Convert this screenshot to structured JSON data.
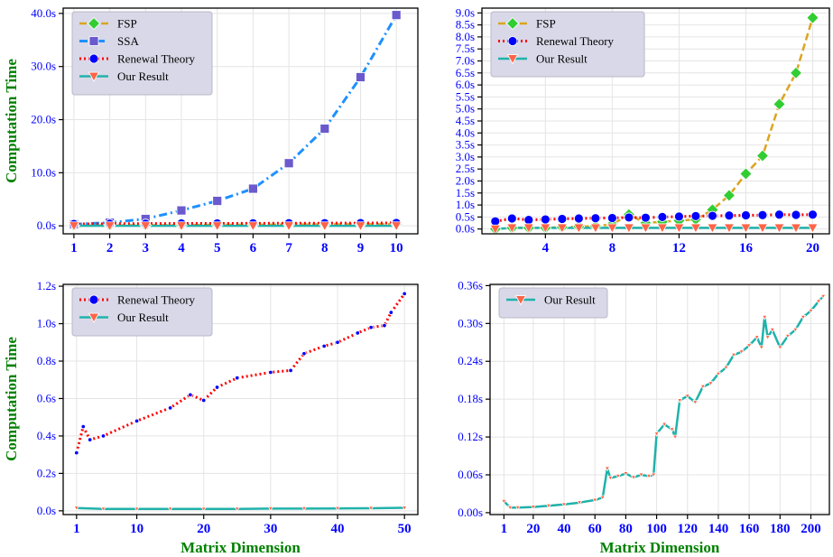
{
  "colors": {
    "FSP": "#DAA520",
    "SSA": "#1E90FF",
    "Renewal Theory": "#FF0000",
    "Our Result": "#20B2AA",
    "FSP_marker": "#32CD32",
    "SSA_marker": "#6A5ACD",
    "Renewal Theory_marker": "#0000FF",
    "Our Result_marker": "#FF6347",
    "tick": "#0000FF",
    "axis_label": "#008000",
    "legend_bg": "#D8D8E8"
  },
  "chart_data": [
    {
      "type": "line",
      "ylabel": "Computation Time",
      "xlabel": "",
      "xlim": [
        0.7,
        10.6
      ],
      "ylim": [
        -1.5,
        41
      ],
      "xticks": [
        1,
        2,
        3,
        4,
        5,
        6,
        7,
        8,
        9,
        10
      ],
      "yticks": [
        0,
        10,
        20,
        30,
        40
      ],
      "ytick_labels": [
        "0.0s",
        "10.0s",
        "20.0s",
        "30.0s",
        "40.0s"
      ],
      "grid": true,
      "legend_position": "top-left",
      "legend": [
        "FSP",
        "SSA",
        "Renewal Theory",
        "Our Result"
      ],
      "series": [
        {
          "name": "FSP",
          "x": [
            1,
            2,
            3,
            4,
            5,
            6,
            7,
            8,
            9,
            10
          ],
          "y": [
            0.05,
            0.1,
            0.12,
            0.15,
            0.2,
            0.22,
            0.25,
            0.28,
            0.3,
            0.32
          ]
        },
        {
          "name": "SSA",
          "x": [
            1,
            2,
            3,
            4,
            5,
            6,
            7,
            8,
            9,
            10
          ],
          "y": [
            0.3,
            0.6,
            1.3,
            2.9,
            4.7,
            7.0,
            11.8,
            18.3,
            28.0,
            39.7
          ]
        },
        {
          "name": "Renewal Theory",
          "x": [
            1,
            2,
            3,
            4,
            5,
            6,
            7,
            8,
            9,
            10
          ],
          "y": [
            0.35,
            0.4,
            0.42,
            0.45,
            0.45,
            0.48,
            0.5,
            0.5,
            0.52,
            0.55
          ]
        },
        {
          "name": "Our Result",
          "x": [
            1,
            2,
            3,
            4,
            5,
            6,
            7,
            8,
            9,
            10
          ],
          "y": [
            0.01,
            0.01,
            0.01,
            0.01,
            0.01,
            0.01,
            0.01,
            0.01,
            0.01,
            0.01
          ]
        }
      ]
    },
    {
      "type": "line",
      "ylabel": "",
      "xlabel": "",
      "xlim": [
        0.2,
        21
      ],
      "ylim": [
        -0.2,
        9.2
      ],
      "xticks": [
        4,
        8,
        12,
        16,
        20
      ],
      "yticks": [
        0,
        0.5,
        1,
        1.5,
        2,
        2.5,
        3,
        3.5,
        4,
        4.5,
        5,
        5.5,
        6,
        6.5,
        7,
        7.5,
        8,
        8.5,
        9
      ],
      "ytick_labels": [
        "0.0s",
        "0.5s",
        "1.0s",
        "1.5s",
        "2.0s",
        "2.5s",
        "3.0s",
        "3.5s",
        "4.0s",
        "4.5s",
        "5.0s",
        "5.5s",
        "6.0s",
        "6.5s",
        "7.0s",
        "7.5s",
        "8.0s",
        "8.5s",
        "9.0s"
      ],
      "grid": true,
      "legend_position": "top-left",
      "legend": [
        "FSP",
        "Renewal Theory",
        "Our Result"
      ],
      "series": [
        {
          "name": "FSP",
          "x": [
            1,
            2,
            3,
            4,
            5,
            6,
            7,
            8,
            9,
            10,
            11,
            12,
            13,
            14,
            15,
            16,
            17,
            18,
            19,
            20
          ],
          "y": [
            0.0,
            0.05,
            0.05,
            0.05,
            0.08,
            0.1,
            0.12,
            0.2,
            0.6,
            0.25,
            0.3,
            0.35,
            0.4,
            0.8,
            1.4,
            2.3,
            3.05,
            5.2,
            6.5,
            8.8
          ]
        },
        {
          "name": "Renewal Theory",
          "x": [
            1,
            2,
            3,
            4,
            5,
            6,
            7,
            8,
            9,
            10,
            11,
            12,
            13,
            14,
            15,
            16,
            17,
            18,
            19,
            20
          ],
          "y": [
            0.32,
            0.44,
            0.38,
            0.4,
            0.42,
            0.44,
            0.45,
            0.46,
            0.48,
            0.47,
            0.5,
            0.52,
            0.54,
            0.55,
            0.56,
            0.57,
            0.58,
            0.6,
            0.59,
            0.6
          ]
        },
        {
          "name": "Our Result",
          "x": [
            1,
            2,
            3,
            4,
            5,
            6,
            7,
            8,
            9,
            10,
            11,
            12,
            13,
            14,
            15,
            16,
            17,
            18,
            19,
            20
          ],
          "y": [
            0.0,
            0.05,
            0.05,
            0.05,
            0.05,
            0.05,
            0.05,
            0.05,
            0.05,
            0.05,
            0.05,
            0.05,
            0.05,
            0.05,
            0.05,
            0.05,
            0.05,
            0.05,
            0.05,
            0.05
          ]
        }
      ]
    },
    {
      "type": "line",
      "ylabel": "Computation Time",
      "xlabel": "Matrix Dimension",
      "xlim": [
        -1,
        52
      ],
      "ylim": [
        -0.02,
        1.21
      ],
      "xticks": [
        1,
        10,
        20,
        30,
        40,
        50
      ],
      "yticks": [
        0,
        0.2,
        0.4,
        0.6,
        0.8,
        1.0,
        1.2
      ],
      "ytick_labels": [
        "0.0s",
        "0.2s",
        "0.4s",
        "0.6s",
        "0.8s",
        "1.0s",
        "1.2s"
      ],
      "grid": true,
      "legend_position": "top-left",
      "legend": [
        "Renewal Theory",
        "Our Result"
      ],
      "series": [
        {
          "name": "Renewal Theory",
          "x": [
            1,
            2,
            3,
            5,
            10,
            15,
            18,
            20,
            22,
            25,
            30,
            33,
            35,
            38,
            40,
            43,
            45,
            47,
            48,
            50
          ],
          "y": [
            0.31,
            0.45,
            0.38,
            0.4,
            0.48,
            0.55,
            0.62,
            0.59,
            0.66,
            0.71,
            0.74,
            0.75,
            0.84,
            0.88,
            0.9,
            0.95,
            0.98,
            0.99,
            1.06,
            1.16
          ]
        },
        {
          "name": "Our Result",
          "x": [
            1,
            5,
            10,
            15,
            20,
            25,
            30,
            35,
            40,
            45,
            50
          ],
          "y": [
            0.015,
            0.01,
            0.01,
            0.01,
            0.01,
            0.01,
            0.012,
            0.012,
            0.013,
            0.014,
            0.016
          ]
        }
      ]
    },
    {
      "type": "line",
      "ylabel": "",
      "xlabel": "Matrix Dimension",
      "xlim": [
        -8,
        212
      ],
      "ylim": [
        -0.003,
        0.362
      ],
      "xticks": [
        1,
        20,
        40,
        60,
        80,
        100,
        120,
        140,
        160,
        180,
        200
      ],
      "yticks": [
        0,
        0.06,
        0.12,
        0.18,
        0.24,
        0.3,
        0.36
      ],
      "ytick_labels": [
        "0.00s",
        "0.06s",
        "0.12s",
        "0.18s",
        "0.24s",
        "0.30s",
        "0.36s"
      ],
      "grid": true,
      "legend_position": "top-left",
      "legend": [
        "Our Result"
      ],
      "series": [
        {
          "name": "Our Result",
          "x": [
            1,
            5,
            10,
            20,
            30,
            40,
            50,
            60,
            65,
            68,
            70,
            75,
            80,
            85,
            90,
            95,
            98,
            100,
            105,
            110,
            112,
            115,
            120,
            125,
            130,
            135,
            140,
            145,
            150,
            155,
            160,
            165,
            168,
            170,
            172,
            175,
            180,
            185,
            190,
            195,
            200,
            205,
            208
          ],
          "y": [
            0.018,
            0.008,
            0.008,
            0.009,
            0.011,
            0.013,
            0.016,
            0.02,
            0.024,
            0.07,
            0.055,
            0.058,
            0.062,
            0.056,
            0.06,
            0.058,
            0.06,
            0.125,
            0.14,
            0.132,
            0.12,
            0.178,
            0.185,
            0.175,
            0.2,
            0.205,
            0.22,
            0.23,
            0.25,
            0.255,
            0.265,
            0.278,
            0.262,
            0.31,
            0.278,
            0.29,
            0.262,
            0.28,
            0.29,
            0.31,
            0.32,
            0.335,
            0.343
          ]
        }
      ]
    }
  ]
}
